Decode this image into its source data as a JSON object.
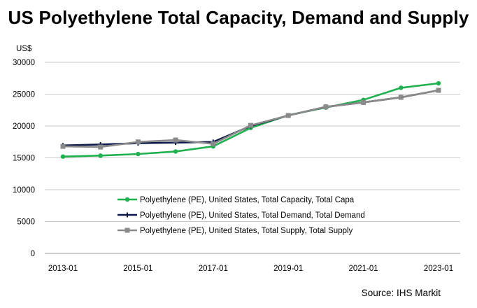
{
  "chart_data": {
    "type": "line",
    "title": "US Polyethylene  Total Capacity, Demand and Supply",
    "ylabel": "US$",
    "xlabel": "",
    "ylim": [
      0,
      30000
    ],
    "yticks": [
      0,
      5000,
      10000,
      15000,
      20000,
      25000,
      30000
    ],
    "x": [
      "2013-01",
      "2014-01",
      "2015-01",
      "2016-01",
      "2017-01",
      "2018-01",
      "2019-01",
      "2020-01",
      "2021-01",
      "2022-01",
      "2023-01"
    ],
    "xtick_labels": [
      "2013-01",
      "2015-01",
      "2017-01",
      "2019-01",
      "2021-01",
      "2023-01"
    ],
    "grid": true,
    "legend_position": "lower-center",
    "series": [
      {
        "name": "Polyethylene (PE), United States, Total Capacity, Total Capa",
        "color": "#1fb04f",
        "marker": "circle",
        "values": [
          15200,
          15350,
          15600,
          16000,
          16800,
          19700,
          21700,
          22900,
          24100,
          26000,
          26700
        ]
      },
      {
        "name": "Polyethylene (PE), United States, Total Demand, Total Demand",
        "color": "#0e1a4a",
        "marker": "plus",
        "values": [
          16950,
          17100,
          17300,
          17400,
          17500,
          20000,
          21650,
          23000,
          23700,
          24500,
          25600
        ]
      },
      {
        "name": "Polyethylene (PE), United States, Total Supply, Total Supply",
        "color": "#8a8a8a",
        "marker": "square",
        "values": [
          16800,
          16700,
          17500,
          17800,
          17200,
          20100,
          21650,
          23000,
          23700,
          24500,
          25600
        ]
      }
    ]
  },
  "source": "Source: IHS Markit"
}
